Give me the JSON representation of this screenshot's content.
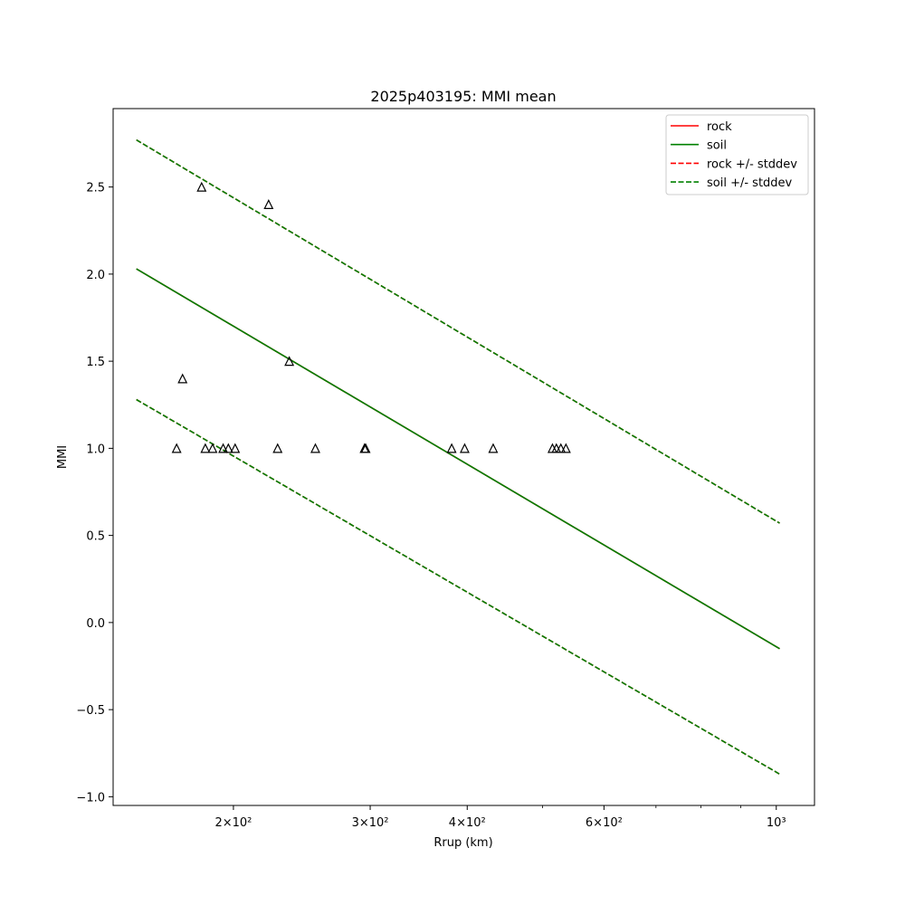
{
  "chart_data": {
    "type": "line",
    "title": "2025p403195: MMI mean",
    "xlabel": "Rrup (km)",
    "ylabel": "MMI",
    "xscale": "log",
    "xlim": [
      140,
      1120
    ],
    "ylim": [
      -1.05,
      2.95
    ],
    "grid": false,
    "legend_position": "top-right",
    "x_ticks": [
      {
        "value": 200,
        "label": "2×10²"
      },
      {
        "value": 300,
        "label": "3×10²"
      },
      {
        "value": 400,
        "label": "4×10²"
      },
      {
        "value": 600,
        "label": "6×10²"
      },
      {
        "value": 1000,
        "label": "10³"
      }
    ],
    "x_minor_ticks": [
      500,
      700,
      800,
      900
    ],
    "y_ticks": [
      {
        "value": -1.0,
        "label": "−1.0"
      },
      {
        "value": -0.5,
        "label": "−0.5"
      },
      {
        "value": 0.0,
        "label": "0.0"
      },
      {
        "value": 0.5,
        "label": "0.5"
      },
      {
        "value": 1.0,
        "label": "1.0"
      },
      {
        "value": 1.5,
        "label": "1.5"
      },
      {
        "value": 2.0,
        "label": "2.0"
      },
      {
        "value": 2.5,
        "label": "2.5"
      }
    ],
    "series": [
      {
        "name": "rock",
        "color": "#ff0000",
        "style": "solid",
        "x": [
          150,
          1010
        ],
        "y": [
          2.03,
          -0.15
        ]
      },
      {
        "name": "soil",
        "color": "#008000",
        "style": "solid",
        "x": [
          150,
          1010
        ],
        "y": [
          2.03,
          -0.15
        ]
      },
      {
        "name": "rock +/- stddev",
        "color": "#ff0000",
        "style": "dashed",
        "x": [
          150,
          1010
        ],
        "y": [
          2.77,
          0.57
        ]
      },
      {
        "name": "soil +/- stddev",
        "color": "#008000",
        "style": "dashed",
        "x": [
          150,
          1010
        ],
        "y": [
          2.77,
          0.57
        ]
      },
      {
        "name": "",
        "color": "#ff0000",
        "style": "dashed",
        "x": [
          150,
          1010
        ],
        "y": [
          1.28,
          -0.87
        ]
      },
      {
        "name": "",
        "color": "#008000",
        "style": "dashed",
        "x": [
          150,
          1010
        ],
        "y": [
          1.28,
          -0.87
        ]
      }
    ],
    "observations": {
      "marker": "triangle",
      "points": [
        {
          "x": 182,
          "y": 2.5
        },
        {
          "x": 222,
          "y": 2.4
        },
        {
          "x": 236,
          "y": 1.5
        },
        {
          "x": 172,
          "y": 1.4
        },
        {
          "x": 169,
          "y": 1.0
        },
        {
          "x": 184,
          "y": 1.0
        },
        {
          "x": 188,
          "y": 1.0
        },
        {
          "x": 194,
          "y": 1.0
        },
        {
          "x": 197,
          "y": 1.0
        },
        {
          "x": 201,
          "y": 1.0
        },
        {
          "x": 228,
          "y": 1.0
        },
        {
          "x": 255,
          "y": 1.0
        },
        {
          "x": 295,
          "y": 1.0
        },
        {
          "x": 296,
          "y": 1.0
        },
        {
          "x": 382,
          "y": 1.0
        },
        {
          "x": 397,
          "y": 1.0
        },
        {
          "x": 432,
          "y": 1.0
        },
        {
          "x": 515,
          "y": 1.0
        },
        {
          "x": 521,
          "y": 1.0
        },
        {
          "x": 528,
          "y": 1.0
        },
        {
          "x": 536,
          "y": 1.0
        }
      ]
    }
  }
}
